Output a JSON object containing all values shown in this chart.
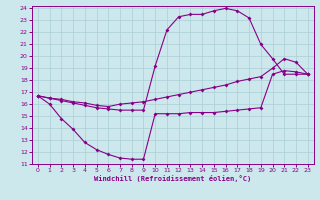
{
  "xlabel": "Windchill (Refroidissement éolien,°C)",
  "bg_color": "#cce8ec",
  "line_color": "#880088",
  "grid_color": "#aacdd4",
  "xlim": [
    -0.5,
    23.5
  ],
  "ylim": [
    11,
    24.2
  ],
  "xticks": [
    0,
    1,
    2,
    3,
    4,
    5,
    6,
    7,
    8,
    9,
    10,
    11,
    12,
    13,
    14,
    15,
    16,
    17,
    18,
    19,
    20,
    21,
    22,
    23
  ],
  "yticks": [
    11,
    12,
    13,
    14,
    15,
    16,
    17,
    18,
    19,
    20,
    21,
    22,
    23,
    24
  ],
  "upper_x": [
    0,
    1,
    2,
    3,
    4,
    5,
    6,
    7,
    8,
    9,
    10,
    11,
    12,
    13,
    14,
    15,
    16,
    17,
    18,
    19,
    20,
    21,
    22,
    23
  ],
  "upper_y": [
    16.7,
    16.5,
    16.3,
    16.1,
    15.9,
    15.7,
    15.6,
    15.5,
    15.5,
    15.5,
    19.2,
    22.2,
    23.3,
    23.5,
    23.5,
    23.8,
    24.0,
    23.8,
    23.2,
    21.0,
    19.8,
    18.5,
    18.5,
    18.5
  ],
  "lower_x": [
    0,
    1,
    2,
    3,
    4,
    5,
    6,
    7,
    8,
    9,
    10,
    11,
    12,
    13,
    14,
    15,
    16,
    17,
    18,
    19,
    20,
    21,
    22,
    23
  ],
  "lower_y": [
    16.7,
    16.0,
    14.8,
    13.9,
    12.8,
    12.2,
    11.8,
    11.5,
    11.4,
    11.4,
    15.2,
    15.2,
    15.2,
    15.3,
    15.3,
    15.3,
    15.4,
    15.5,
    15.6,
    15.7,
    18.5,
    18.8,
    18.7,
    18.5
  ],
  "diag_x": [
    0,
    1,
    2,
    3,
    4,
    5,
    6,
    7,
    8,
    9,
    10,
    11,
    12,
    13,
    14,
    15,
    16,
    17,
    18,
    19,
    20,
    21,
    22,
    23
  ],
  "diag_y": [
    16.7,
    16.5,
    16.4,
    16.2,
    16.1,
    15.9,
    15.8,
    16.0,
    16.1,
    16.2,
    16.4,
    16.6,
    16.8,
    17.0,
    17.2,
    17.4,
    17.6,
    17.9,
    18.1,
    18.3,
    19.0,
    19.8,
    19.5,
    18.5
  ]
}
